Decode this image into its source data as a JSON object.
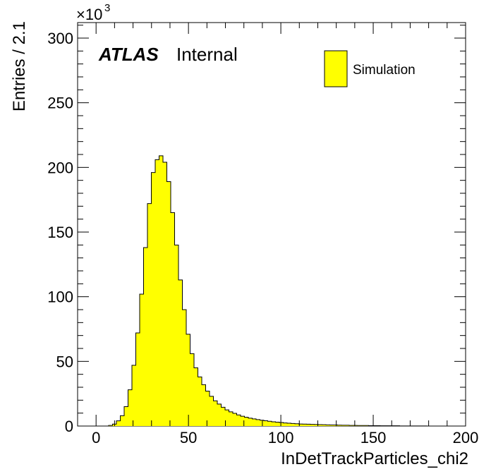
{
  "chart_data": {
    "type": "bar",
    "title": "",
    "xlabel": "InDetTrackParticles_chi2",
    "ylabel": "Entries / 2.1",
    "y_multiplier": "×10",
    "y_multiplier_exp": "3",
    "xlim": [
      -10,
      200
    ],
    "ylim": [
      0,
      312
    ],
    "x_ticks": [
      0,
      50,
      100,
      150,
      200
    ],
    "x_tick_labels": [
      "0",
      "50",
      "100",
      "150",
      "200"
    ],
    "y_ticks": [
      0,
      50,
      100,
      150,
      200,
      250,
      300
    ],
    "y_tick_labels": [
      "0",
      "50",
      "100",
      "150",
      "200",
      "250",
      "300"
    ],
    "bin_width": 2.1,
    "bin_start": 6.8,
    "grid": false,
    "legend_position": "top-right",
    "style": "filled-step-histogram",
    "fill_color": "#ffff00",
    "line_color": "#000000",
    "series": [
      {
        "name": "Simulation",
        "values": [
          0.5,
          1.5,
          4,
          8,
          15,
          28,
          47,
          72,
          102,
          138,
          172,
          196,
          206,
          209,
          204,
          189,
          165,
          140,
          113,
          90,
          71,
          56,
          45,
          38,
          32,
          27,
          23,
          19.5,
          17,
          14.5,
          12.5,
          11,
          9.8,
          8.6,
          7.6,
          6.8,
          6.1,
          5.5,
          5.0,
          4.5,
          4.1,
          3.7,
          3.3,
          3.0,
          2.7,
          2.4,
          2.2,
          2.0,
          1.8,
          1.6,
          1.5,
          1.4,
          1.3,
          1.2,
          1.1,
          1.0,
          0.9,
          0.8,
          0.8,
          0.7,
          0.6,
          0.6,
          0.5,
          0.5,
          0.4,
          0.4,
          0.4,
          0.3,
          0.3,
          0.3,
          0.2,
          0.2,
          0.2,
          0.2,
          0.2,
          0.1,
          0.1,
          0.1,
          0.1,
          0.1,
          0.1,
          0.1
        ]
      }
    ]
  },
  "labels": {
    "atlas": "ATLAS",
    "internal": "Internal"
  }
}
